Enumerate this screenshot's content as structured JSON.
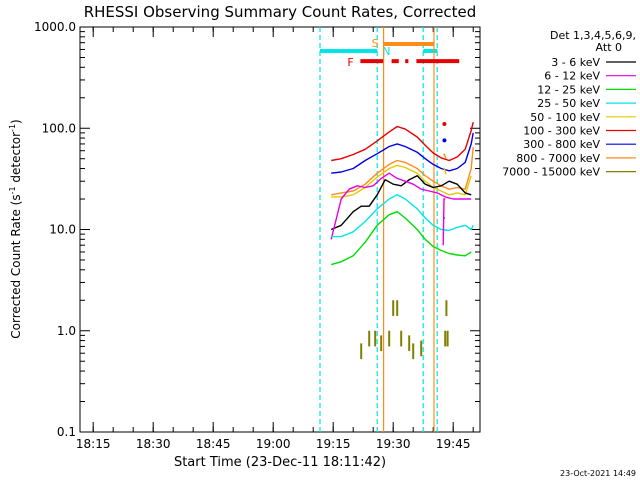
{
  "chart_data": {
    "type": "line",
    "title": "RHESSI Observing Summary Count Rates, Corrected",
    "xlabel": "Start Time (23-Dec-11 18:11:42)",
    "ylabel_pre": "Corrected Count Rate (s",
    "ylabel_sup": "-1",
    "ylabel_mid": " detector",
    "ylabel_post": ")",
    "x_unit": "minutes after 18:00 UT on 23-Dec-2011",
    "xlim": [
      11.7,
      51.7
    ],
    "ylim": [
      0.1,
      1000
    ],
    "yscale": "log",
    "x_ticks": [
      {
        "value": 15,
        "label": "18:15"
      },
      {
        "value": 30,
        "label": "18:30"
      },
      {
        "value": 45,
        "label": "18:45"
      },
      {
        "value": 60,
        "label": "19:00"
      },
      {
        "value": 75,
        "label": "19:15"
      },
      {
        "value": 90,
        "label": "19:30"
      },
      {
        "value": 105,
        "label": "19:45"
      }
    ],
    "y_ticks": [
      {
        "value": 0.1,
        "label": "0.1"
      },
      {
        "value": 1,
        "label": "1.0"
      },
      {
        "value": 10,
        "label": "10.0"
      },
      {
        "value": 100,
        "label": "100.0"
      },
      {
        "value": 1000,
        "label": "1000.0"
      }
    ],
    "legend": {
      "placement": "top-right, outside plot",
      "header1": "Det 1,3,4,5,6,9,",
      "header2": "Att 0",
      "entries": [
        {
          "label": "3 - 6 keV",
          "color": "#000000"
        },
        {
          "label": "6 - 12 keV",
          "color": "#e600e6"
        },
        {
          "label": "12 - 25 keV",
          "color": "#00dd00"
        },
        {
          "label": "25 - 50 keV",
          "color": "#00e5e5"
        },
        {
          "label": "50 - 100 keV",
          "color": "#e6c800"
        },
        {
          "label": "100 - 300 keV",
          "color": "#e60000"
        },
        {
          "label": "300 - 800 keV",
          "color": "#0000e6"
        },
        {
          "label": "800 - 7000 keV",
          "color": "#ff8c1a"
        },
        {
          "label": "7000 - 15000 keV",
          "color": "#808000"
        }
      ]
    },
    "flags": {
      "night": {
        "label": "N",
        "color": "#00e5e5",
        "value": 580,
        "segments": [
          [
            11.7,
            26.0
          ],
          [
            37.5,
            41.0
          ]
        ],
        "boundaries": [
          11.7,
          26.0,
          37.5,
          41.0
        ]
      },
      "flare": {
        "label": "F",
        "color": "#e60000",
        "value": 460,
        "segments": [
          [
            21.8,
            27.5
          ],
          [
            29.6,
            31.4
          ],
          [
            33.0,
            33.8
          ],
          [
            35.8,
            46.5
          ]
        ]
      },
      "saa": {
        "label": "S",
        "color": "#ff8c1a",
        "value": 680,
        "segments": [
          [
            27.6,
            40.2
          ]
        ],
        "boundaries": [
          27.6,
          40.2
        ]
      }
    },
    "series_segments": [
      {
        "name": "100 - 300 keV",
        "color": "#e60000",
        "points": [
          [
            14.5,
            48
          ],
          [
            17,
            50
          ],
          [
            20,
            55
          ],
          [
            23,
            62
          ],
          [
            26,
            75
          ],
          [
            29,
            92
          ],
          [
            31,
            104
          ],
          [
            33,
            98
          ],
          [
            36,
            82
          ],
          [
            38,
            68
          ],
          [
            40,
            57
          ],
          [
            42,
            51
          ],
          [
            44,
            48
          ],
          [
            46,
            52
          ],
          [
            48,
            62
          ],
          [
            49.5,
            95
          ],
          [
            50,
            115
          ]
        ]
      },
      {
        "name": "300 - 800 keV",
        "color": "#0000e6",
        "points": [
          [
            14.5,
            36
          ],
          [
            17,
            37
          ],
          [
            20,
            40
          ],
          [
            23,
            48
          ],
          [
            26,
            56
          ],
          [
            29,
            66
          ],
          [
            31,
            70
          ],
          [
            33,
            66
          ],
          [
            36,
            58
          ],
          [
            38,
            50
          ],
          [
            40,
            44
          ],
          [
            42,
            40
          ],
          [
            44,
            38
          ],
          [
            46,
            40
          ],
          [
            48,
            46
          ],
          [
            49.5,
            70
          ],
          [
            50,
            90
          ]
        ]
      },
      {
        "name": "800 - 7000 keV",
        "color": "#ff8c1a",
        "points": [
          [
            14.5,
            22
          ],
          [
            17,
            23
          ],
          [
            20,
            24
          ],
          [
            23,
            28
          ],
          [
            26,
            36
          ],
          [
            29,
            44
          ],
          [
            31,
            48
          ],
          [
            33,
            46
          ],
          [
            36,
            40
          ],
          [
            38,
            34
          ],
          [
            40,
            30
          ],
          [
            42,
            27
          ],
          [
            44,
            25
          ],
          [
            46,
            26
          ],
          [
            48,
            25
          ],
          [
            49.5,
            40
          ],
          [
            50,
            65
          ]
        ]
      },
      {
        "name": "50 - 100 keV",
        "color": "#e6c800",
        "points": [
          [
            14.5,
            21
          ],
          [
            17,
            21
          ],
          [
            20,
            22
          ],
          [
            23,
            26
          ],
          [
            26,
            33
          ],
          [
            29,
            40
          ],
          [
            31,
            43
          ],
          [
            33,
            41
          ],
          [
            36,
            36
          ],
          [
            38,
            30
          ],
          [
            40,
            26
          ],
          [
            42,
            24
          ],
          [
            44,
            22
          ],
          [
            46,
            23
          ],
          [
            48,
            22
          ],
          [
            49.5,
            34
          ]
        ]
      },
      {
        "name": "3 - 6 keV",
        "color": "#000000",
        "points": [
          [
            14.5,
            10
          ],
          [
            17,
            11
          ],
          [
            20,
            15
          ],
          [
            22,
            17
          ],
          [
            24,
            17
          ],
          [
            26,
            22
          ],
          [
            28,
            31
          ],
          [
            30,
            28
          ],
          [
            32,
            27
          ],
          [
            34,
            31
          ],
          [
            36,
            34
          ],
          [
            38,
            28
          ],
          [
            40,
            26
          ],
          [
            42,
            27
          ],
          [
            44,
            30
          ],
          [
            46,
            28
          ],
          [
            48,
            23
          ],
          [
            49.5,
            22
          ]
        ]
      },
      {
        "name": "6 - 12 keV",
        "color": "#e600e6",
        "points": [
          [
            14.5,
            8
          ],
          [
            17,
            20
          ],
          [
            19,
            25
          ],
          [
            21,
            27
          ],
          [
            23,
            26
          ],
          [
            25,
            27
          ],
          [
            27,
            32
          ],
          [
            29,
            36
          ],
          [
            31,
            32
          ],
          [
            33,
            30
          ],
          [
            35,
            28
          ],
          [
            37,
            25
          ],
          [
            39,
            24
          ],
          [
            41,
            23
          ],
          [
            43,
            21
          ],
          [
            45,
            20
          ],
          [
            47,
            20
          ],
          [
            49.5,
            20
          ]
        ]
      },
      {
        "name": "25 - 50 keV",
        "color": "#00e5e5",
        "points": [
          [
            14.5,
            8.5
          ],
          [
            17,
            8.5
          ],
          [
            20,
            9.5
          ],
          [
            23,
            12
          ],
          [
            26,
            16
          ],
          [
            29,
            20
          ],
          [
            31,
            22
          ],
          [
            33,
            20
          ],
          [
            36,
            16
          ],
          [
            38,
            13
          ],
          [
            40,
            11
          ],
          [
            42,
            10
          ],
          [
            44,
            9.8
          ],
          [
            46,
            10.5
          ],
          [
            48,
            11
          ],
          [
            49.5,
            10
          ],
          [
            50,
            11
          ]
        ]
      },
      {
        "name": "12 - 25 keV",
        "color": "#00dd00",
        "points": [
          [
            14.5,
            4.5
          ],
          [
            17,
            4.8
          ],
          [
            20,
            5.5
          ],
          [
            23,
            7.5
          ],
          [
            26,
            11
          ],
          [
            29,
            14
          ],
          [
            31,
            15
          ],
          [
            33,
            13
          ],
          [
            36,
            10
          ],
          [
            38,
            8
          ],
          [
            40,
            6.8
          ],
          [
            42,
            6.2
          ],
          [
            44,
            5.8
          ],
          [
            46,
            5.6
          ],
          [
            48,
            5.5
          ],
          [
            49.5,
            6
          ]
        ]
      },
      {
        "name": "100 - 300 keV",
        "color": "#e60000",
        "points": [
          [
            42.8,
            110
          ]
        ]
      },
      {
        "name": "300 - 800 keV",
        "color": "#0000e6",
        "points": [
          [
            42.8,
            76
          ]
        ]
      },
      {
        "name": "800 - 7000 keV",
        "color": "#ff8c1a",
        "points": [
          [
            42.5,
            55
          ],
          [
            42.8,
            55
          ],
          [
            43.2,
            50
          ]
        ]
      },
      {
        "name": "50 - 100 keV",
        "color": "#e6c800",
        "points": [
          [
            42.5,
            40
          ],
          [
            42.8,
            40
          ],
          [
            43.2,
            35
          ]
        ]
      },
      {
        "name": "3 - 6 keV",
        "color": "#000000",
        "points": [
          [
            42.6,
            13
          ],
          [
            42.9,
            13
          ]
        ]
      },
      {
        "name": "6 - 12 keV",
        "color": "#e600e6",
        "points": [
          [
            42.5,
            7
          ],
          [
            42.7,
            20
          ],
          [
            43.0,
            20
          ]
        ]
      }
    ],
    "sparse_points": [
      {
        "name": "7000 - 15000 keV",
        "color": "#808000",
        "points": [
          [
            22,
            0.75
          ],
          [
            24,
            1.0
          ],
          [
            25.5,
            1.0
          ],
          [
            27,
            0.9
          ],
          [
            29,
            1.0
          ],
          [
            30,
            2.0
          ],
          [
            31,
            2.0
          ],
          [
            32,
            1.0
          ],
          [
            34,
            0.9
          ],
          [
            35,
            0.75
          ],
          [
            37,
            0.8
          ],
          [
            43,
            1.0
          ],
          [
            43.3,
            2.0
          ],
          [
            43.6,
            1.0
          ]
        ]
      }
    ]
  },
  "footer": {
    "timestamp": "23-Oct-2021 14:49"
  }
}
